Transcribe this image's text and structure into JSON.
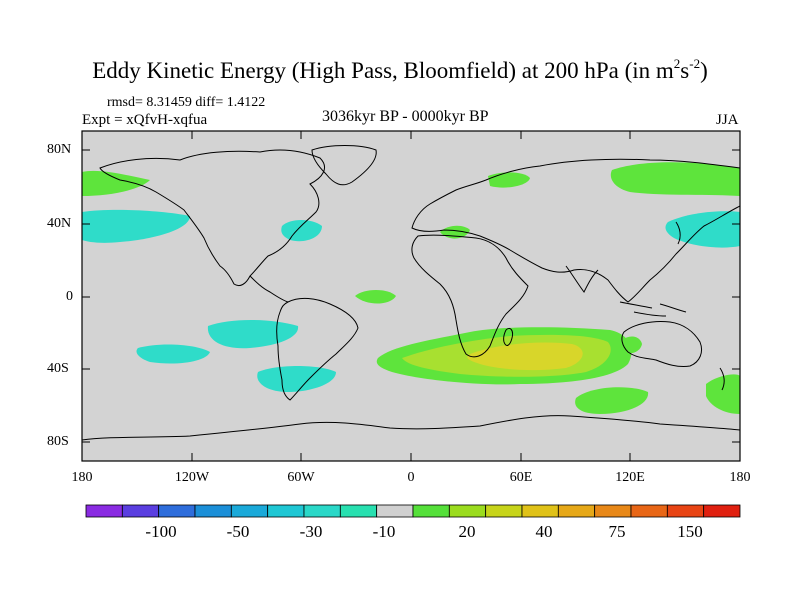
{
  "title": "Eddy Kinetic Energy (High Pass, Bloomfield) at 200 hPa (in m",
  "title_units": {
    "sup1": "2",
    "s": "s",
    "sup2": "-2",
    "close": ")"
  },
  "stats": "rmsd= 8.31459 diff= 1.4122",
  "expt": "Expt = xQfvH-xqfua",
  "period": "3036kyr BP - 0000kyr BP",
  "season": "JJA",
  "lat_ticks": [
    "80N",
    "40N",
    "0",
    "40S",
    "80S"
  ],
  "lon_ticks": [
    "180",
    "120W",
    "60W",
    "0",
    "60E",
    "120E",
    "180"
  ],
  "colorbar": {
    "labels": [
      "-100",
      "-50",
      "-30",
      "-10",
      "20",
      "40",
      "75",
      "150"
    ],
    "colors": [
      "#8a2be2",
      "#5a3ee0",
      "#2e6ddb",
      "#1b8fd8",
      "#1aa9d9",
      "#1fc7d4",
      "#2ad8c8",
      "#28e0b0",
      "#d0d0d0",
      "#55e03a",
      "#9bdc1e",
      "#c7d41a",
      "#e0c218",
      "#e6a818",
      "#e88818",
      "#e86616",
      "#e84414",
      "#e02010"
    ]
  },
  "map_colors": {
    "neutral": "#d3d3d3",
    "cyan": "#2fdcc9",
    "green": "#5ee43c",
    "lime": "#a8e030",
    "yellow": "#d8d62a",
    "coast": "#000000"
  }
}
